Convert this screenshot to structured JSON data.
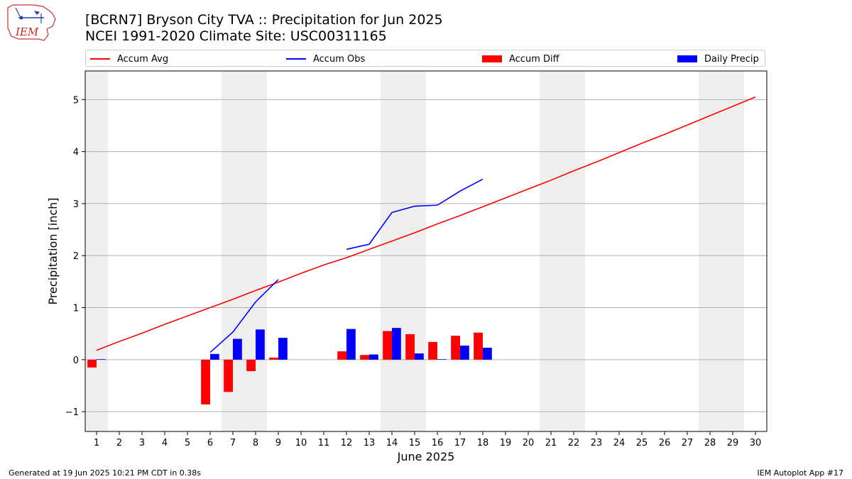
{
  "title_line1": "[BCRN7] Bryson City TVA :: Precipitation for Jun 2025",
  "title_line2": "NCEI 1991-2020 Climate Site: USC00311165",
  "logo_text": "IEM",
  "footer_left": "Generated at 19 Jun 2025 10:21 PM CDT in 0.38s",
  "footer_right": "IEM Autoplot App #17",
  "colors": {
    "avg": "#ff0000",
    "obs": "#0000ff",
    "diff": "#ff0000",
    "precip": "#0000ff",
    "weekend": "#eeeeee",
    "grid": "#b0b0b0"
  },
  "legend": [
    {
      "label": "Accum Avg",
      "kind": "line",
      "color": "#ff0000"
    },
    {
      "label": "Accum Obs",
      "kind": "line",
      "color": "#0000ff"
    },
    {
      "label": "Accum Diff",
      "kind": "patch",
      "color": "#ff0000"
    },
    {
      "label": "Daily Precip",
      "kind": "patch",
      "color": "#0000ff"
    }
  ],
  "chart_data": {
    "type": "bar",
    "xlabel": "June 2025",
    "ylabel": "Precipitation [inch]",
    "xlim": [
      0.5,
      30.5
    ],
    "ylim": [
      -1.38,
      5.55
    ],
    "yticks": [
      -1,
      0,
      1,
      2,
      3,
      4,
      5
    ],
    "ytick_labels": [
      "−1",
      "0",
      "1",
      "2",
      "3",
      "4",
      "5"
    ],
    "xticks": [
      1,
      2,
      3,
      4,
      5,
      6,
      7,
      8,
      9,
      10,
      11,
      12,
      13,
      14,
      15,
      16,
      17,
      18,
      19,
      20,
      21,
      22,
      23,
      24,
      25,
      26,
      27,
      28,
      29,
      30
    ],
    "xtick_labels": [
      "1",
      "2",
      "3",
      "4",
      "5",
      "6",
      "7",
      "8",
      "9",
      "10",
      "11",
      "12",
      "13",
      "14",
      "15",
      "16",
      "17",
      "18",
      "19",
      "20",
      "21",
      "22",
      "23",
      "24",
      "25",
      "26",
      "27",
      "28",
      "29",
      "30"
    ],
    "grid": "horizontal",
    "weekend_spans": [
      [
        0.5,
        1.5
      ],
      [
        6.5,
        8.5
      ],
      [
        13.5,
        15.5
      ],
      [
        20.5,
        22.5
      ],
      [
        27.5,
        29.5
      ]
    ],
    "accum_avg": {
      "days": [
        1,
        2,
        3,
        4,
        5,
        6,
        7,
        8,
        9,
        10,
        11,
        12,
        13,
        14,
        15,
        16,
        17,
        18,
        19,
        20,
        21,
        22,
        23,
        24,
        25,
        26,
        27,
        28,
        29,
        30
      ],
      "values": [
        0.18,
        0.35,
        0.51,
        0.68,
        0.84,
        1.0,
        1.16,
        1.33,
        1.49,
        1.66,
        1.82,
        1.96,
        2.12,
        2.28,
        2.44,
        2.61,
        2.77,
        2.94,
        3.11,
        3.28,
        3.45,
        3.63,
        3.8,
        3.98,
        4.16,
        4.33,
        4.51,
        4.69,
        4.87,
        5.05
      ]
    },
    "accum_obs": {
      "segments": [
        {
          "days": [
            6,
            7,
            8,
            9
          ],
          "values": [
            0.14,
            0.53,
            1.11,
            1.54
          ]
        },
        {
          "days": [
            12,
            13,
            14,
            15,
            16,
            17,
            18
          ],
          "values": [
            2.12,
            2.22,
            2.83,
            2.95,
            2.97,
            3.24,
            3.47
          ]
        }
      ]
    },
    "accum_diff": {
      "days": [
        1,
        6,
        7,
        8,
        9,
        12,
        13,
        14,
        15,
        16,
        17,
        18
      ],
      "values": [
        -0.15,
        -0.86,
        -0.62,
        -0.22,
        0.04,
        0.16,
        0.09,
        0.55,
        0.49,
        0.34,
        0.46,
        0.52
      ]
    },
    "daily_precip": {
      "days": [
        1,
        6,
        7,
        8,
        9,
        12,
        13,
        14,
        15,
        16,
        17,
        18
      ],
      "values": [
        0.01,
        0.11,
        0.4,
        0.58,
        0.42,
        0.59,
        0.1,
        0.61,
        0.12,
        0.01,
        0.27,
        0.23
      ]
    }
  }
}
